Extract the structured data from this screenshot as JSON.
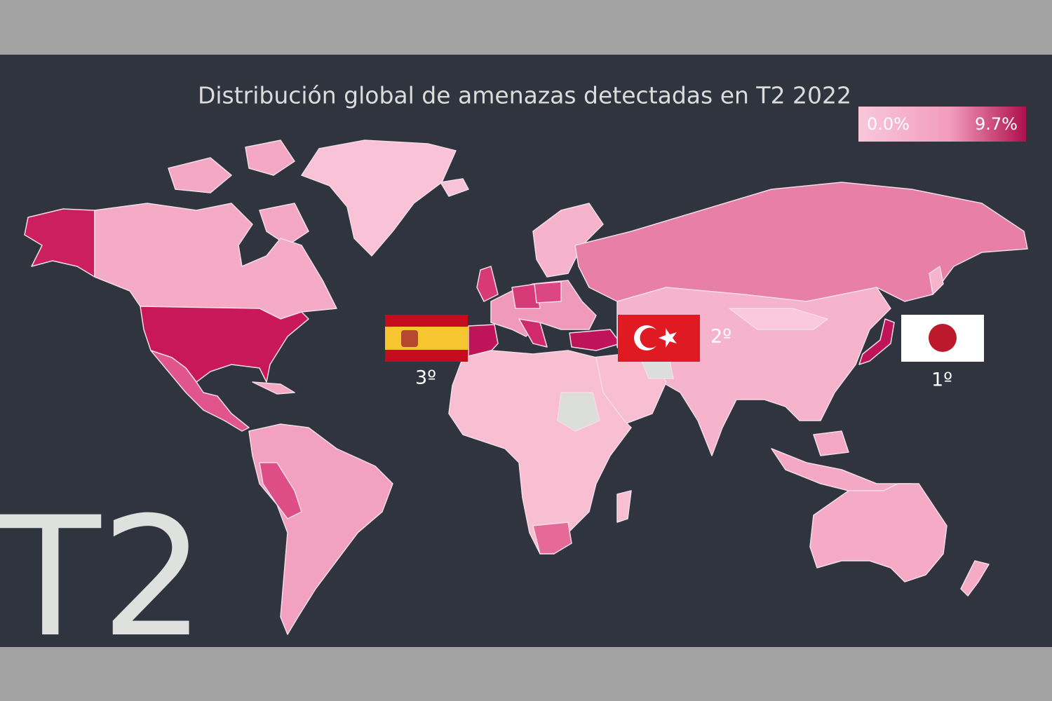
{
  "title": "Distribución global de amenazas detectadas en T2 2022",
  "legend": {
    "min": {
      "value": 0.0,
      "label": "0.0%"
    },
    "max": {
      "value": 9.7,
      "label": "9.7%"
    }
  },
  "ranking": [
    {
      "label": "1º"
    },
    {
      "label": "2º"
    },
    {
      "label": "3º"
    }
  ],
  "watermark": "T2"
}
